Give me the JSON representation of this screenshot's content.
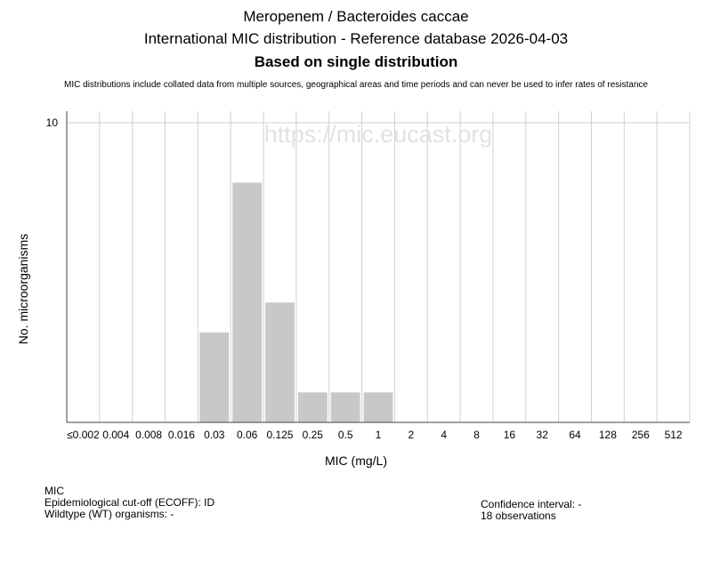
{
  "header": {
    "title_line1": "Meropenem / Bacteroides caccae",
    "title_line2": "International MIC distribution - Reference database 2026-04-03",
    "title_line3": "Based on single distribution",
    "disclaimer": "MIC distributions include collated data from multiple sources, geographical areas and time periods and can never be used to infer rates of resistance"
  },
  "watermark": "https://mic.eucast.org",
  "chart_data": {
    "type": "bar",
    "categories": [
      "≤0.002",
      "0.004",
      "0.008",
      "0.016",
      "0.03",
      "0.06",
      "0.125",
      "0.25",
      "0.5",
      "1",
      "2",
      "4",
      "8",
      "16",
      "32",
      "64",
      "128",
      "256",
      "512"
    ],
    "values": [
      0,
      0,
      0,
      0,
      3,
      8,
      4,
      1,
      1,
      1,
      0,
      0,
      0,
      0,
      0,
      0,
      0,
      0,
      0
    ],
    "xlabel": "MIC (mg/L)",
    "ylabel": "No. microorganisms",
    "ylim": [
      0,
      10
    ],
    "yticks": [
      "10"
    ],
    "grid": true,
    "bar_color": "#c8c8c8"
  },
  "footer": {
    "mic_label": "MIC",
    "ecoff": "Epidemiological cut-off (ECOFF): ID",
    "wildtype": "Wildtype (WT) organisms:  -",
    "confidence": "Confidence interval: -",
    "observations": "18 observations"
  }
}
